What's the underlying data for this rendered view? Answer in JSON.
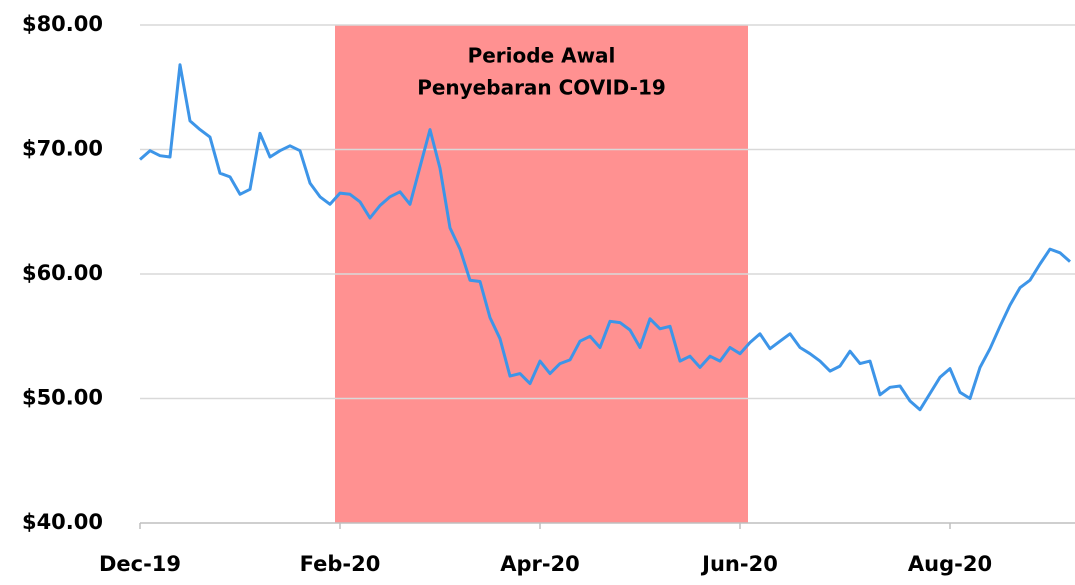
{
  "chart_data": {
    "type": "line",
    "categories": [
      "Dec-19",
      null,
      null,
      null,
      null,
      null,
      null,
      null,
      null,
      null,
      null,
      null,
      null,
      null,
      null,
      null,
      null,
      null,
      null,
      null,
      "Feb-20",
      null,
      null,
      null,
      null,
      null,
      null,
      null,
      null,
      null,
      null,
      null,
      null,
      null,
      null,
      null,
      null,
      null,
      null,
      null,
      "Apr-20",
      null,
      null,
      null,
      null,
      null,
      null,
      null,
      null,
      null,
      null,
      null,
      null,
      null,
      null,
      null,
      null,
      null,
      null,
      null,
      "Jun-20",
      null,
      null,
      null,
      null,
      null,
      null,
      null,
      null,
      null,
      null,
      null,
      null,
      null,
      null,
      null,
      null,
      null,
      null,
      null,
      null,
      "Aug-20",
      null,
      null,
      null,
      null,
      null,
      null,
      null,
      null,
      null,
      null,
      null,
      null
    ],
    "values": [
      69.2,
      69.9,
      69.5,
      69.4,
      76.8,
      72.3,
      71.6,
      71.0,
      68.1,
      67.8,
      66.4,
      66.8,
      71.3,
      69.4,
      69.9,
      70.3,
      69.9,
      67.3,
      66.2,
      65.6,
      66.5,
      66.4,
      65.8,
      64.5,
      65.5,
      66.2,
      66.6,
      65.6,
      68.6,
      71.6,
      68.5,
      63.7,
      62.0,
      59.5,
      59.4,
      56.5,
      54.8,
      51.8,
      52.0,
      51.2,
      53.0,
      52.0,
      52.8,
      53.1,
      54.6,
      55.0,
      54.1,
      56.2,
      56.1,
      55.5,
      54.1,
      56.4,
      55.6,
      55.8,
      53.0,
      53.4,
      52.5,
      53.4,
      53.0,
      54.1,
      53.6,
      54.5,
      55.2,
      54.0,
      54.6,
      55.2,
      54.1,
      53.6,
      53.0,
      52.2,
      52.6,
      53.8,
      52.8,
      53.0,
      50.3,
      50.9,
      51.0,
      49.8,
      49.1,
      50.4,
      51.7,
      52.4,
      50.5,
      50.0,
      52.5,
      54.0,
      55.8,
      57.5,
      58.9,
      59.5,
      60.8,
      62.0,
      61.7,
      61.0
    ],
    "color": "#3d95e8",
    "ylim": [
      40,
      80
    ],
    "yticks": [
      {
        "value": 40,
        "label": "$40.00"
      },
      {
        "value": 50,
        "label": "$50.00"
      },
      {
        "value": 60,
        "label": "$60.00"
      },
      {
        "value": 70,
        "label": "$70.00"
      },
      {
        "value": 80,
        "label": "$80.00"
      }
    ],
    "grid": true,
    "highlight": {
      "text": [
        "Periode Awal",
        "Penyebaran COVID-19"
      ],
      "from": 19.5,
      "to": 60.8,
      "color": "#ff9191"
    }
  }
}
